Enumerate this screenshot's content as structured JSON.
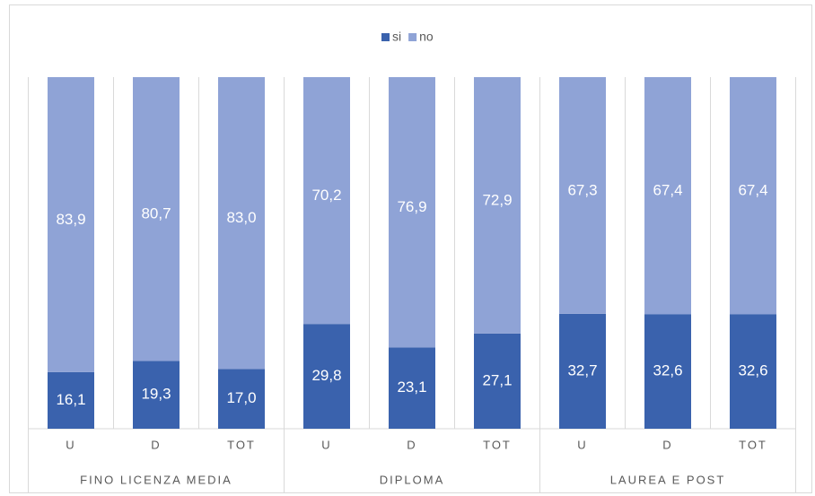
{
  "chart_data": {
    "type": "stacked_bar",
    "categories": [
      "U",
      "D",
      "TOT",
      "U",
      "D",
      "TOT",
      "U",
      "D",
      "TOT"
    ],
    "groups": [
      "FINO LICENZA MEDIA",
      "DIPLOMA",
      "LAUREA E POST"
    ],
    "series": [
      {
        "name": "si",
        "color": "#3a62ad",
        "values": [
          16.1,
          19.3,
          17.0,
          29.8,
          23.1,
          27.1,
          32.7,
          32.6,
          32.6
        ],
        "value_labels": [
          "16,1",
          "19,3",
          "17,0",
          "29,8",
          "23,1",
          "27,1",
          "32,7",
          "32,6",
          "32,6"
        ]
      },
      {
        "name": "no",
        "color": "#8fa3d6",
        "values": [
          83.9,
          80.7,
          83.0,
          70.2,
          76.9,
          72.9,
          67.3,
          67.4,
          67.4
        ],
        "value_labels": [
          "83,9",
          "80,7",
          "83,0",
          "70,2",
          "76,9",
          "72,9",
          "67,3",
          "67,4",
          "67,4"
        ]
      }
    ],
    "legend": "top"
  }
}
